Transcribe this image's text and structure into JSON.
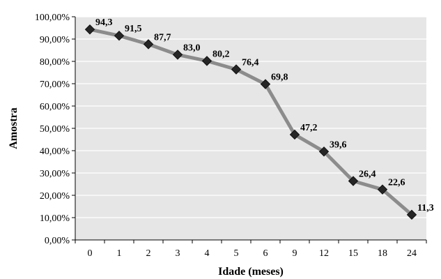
{
  "chart_data": {
    "type": "line",
    "categories": [
      "0",
      "1",
      "2",
      "3",
      "4",
      "5",
      "6",
      "9",
      "12",
      "15",
      "18",
      "24"
    ],
    "values": [
      94.3,
      91.5,
      87.7,
      83.0,
      80.2,
      76.4,
      69.8,
      47.2,
      39.6,
      26.4,
      22.6,
      11.3
    ],
    "data_labels": [
      "94,3",
      "91,5",
      "87,7",
      "83,0",
      "80,2",
      "76,4",
      "69,8",
      "47,2",
      "39,6",
      "26,4",
      "22,6",
      "11,3"
    ],
    "xlabel": "Idade (meses)",
    "ylabel": "Amostra",
    "ylim": [
      0,
      100
    ],
    "yticks": [
      "0,00%",
      "10,00%",
      "20,00%",
      "30,00%",
      "40,00%",
      "50,00%",
      "60,00%",
      "70,00%",
      "80,00%",
      "90,00%",
      "100,00%"
    ],
    "grid": true,
    "legend": "none",
    "colors": {
      "line": "#8c8c8c",
      "marker": "#262626",
      "plot_background": "#e6e6e6",
      "gridline": "#ffffff"
    }
  }
}
